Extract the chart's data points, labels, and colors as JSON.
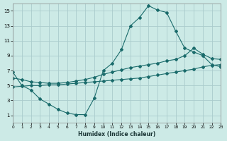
{
  "xlabel": "Humidex (Indice chaleur)",
  "xlim": [
    0,
    23
  ],
  "ylim": [
    0,
    16
  ],
  "xticks": [
    0,
    1,
    2,
    3,
    4,
    5,
    6,
    7,
    8,
    9,
    10,
    11,
    12,
    13,
    14,
    15,
    16,
    17,
    18,
    19,
    20,
    21,
    22,
    23
  ],
  "yticks": [
    1,
    3,
    5,
    7,
    9,
    11,
    13,
    15
  ],
  "bg_color": "#cceae6",
  "grid_color": "#aacccc",
  "line_color": "#1a6b6b",
  "series": [
    {
      "x": [
        0,
        1,
        2,
        3,
        4,
        5,
        6,
        7,
        8,
        9,
        10,
        11,
        12,
        13,
        14,
        15,
        16,
        17,
        18,
        19,
        20,
        21,
        22,
        23
      ],
      "y": [
        6.8,
        5.0,
        4.4,
        3.2,
        2.5,
        1.8,
        1.3,
        1.1,
        1.1,
        3.3,
        7.0,
        8.0,
        9.8,
        13.0,
        14.1,
        15.7,
        15.1,
        14.8,
        12.3,
        10.0,
        9.5,
        9.0,
        7.8,
        7.5
      ]
    },
    {
      "x": [
        0,
        1,
        2,
        3,
        4,
        5,
        6,
        7,
        8,
        9,
        10,
        11,
        12,
        13,
        14,
        15,
        16,
        17,
        18,
        19,
        20,
        21,
        22,
        23
      ],
      "y": [
        6.0,
        5.8,
        5.5,
        5.4,
        5.3,
        5.3,
        5.4,
        5.6,
        5.8,
        6.1,
        6.5,
        6.8,
        7.1,
        7.4,
        7.6,
        7.8,
        8.0,
        8.3,
        8.5,
        9.0,
        10.0,
        9.2,
        8.6,
        8.5
      ]
    },
    {
      "x": [
        0,
        1,
        2,
        3,
        4,
        5,
        6,
        7,
        8,
        9,
        10,
        11,
        12,
        13,
        14,
        15,
        16,
        17,
        18,
        19,
        20,
        21,
        22,
        23
      ],
      "y": [
        4.8,
        4.9,
        5.0,
        5.0,
        5.1,
        5.1,
        5.2,
        5.3,
        5.4,
        5.5,
        5.6,
        5.7,
        5.8,
        5.9,
        6.0,
        6.2,
        6.4,
        6.6,
        6.8,
        7.0,
        7.2,
        7.5,
        7.7,
        7.8
      ]
    }
  ]
}
